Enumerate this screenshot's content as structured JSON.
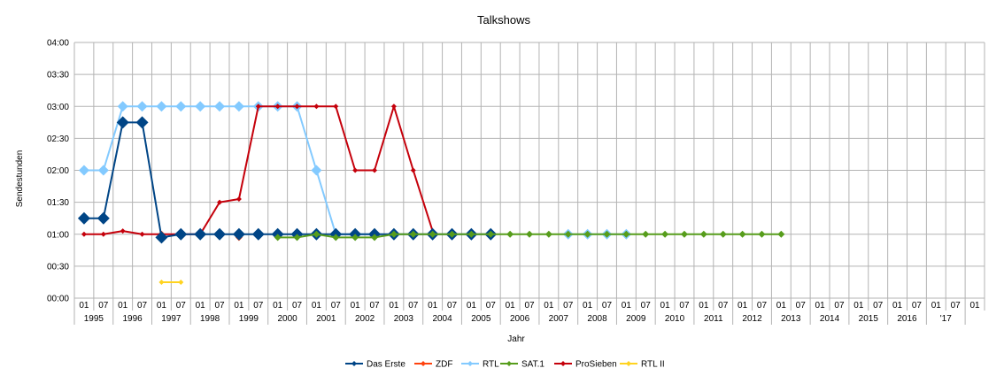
{
  "chart_data": {
    "type": "line",
    "title": "Talkshows",
    "xlabel": "Jahr",
    "ylabel": "Sendestunden",
    "y_ticks": [
      "00:00",
      "00:30",
      "01:00",
      "01:30",
      "02:00",
      "02:30",
      "03:00",
      "03:30",
      "04:00"
    ],
    "ylim_hours": [
      0,
      4
    ],
    "grid": true,
    "legend_position": "bottom",
    "half_labels": [
      "01",
      "07",
      "01",
      "07",
      "01",
      "07",
      "01",
      "07",
      "01",
      "07",
      "01",
      "07",
      "01",
      "07",
      "01",
      "07",
      "01",
      "07",
      "01",
      "07",
      "01",
      "07",
      "01",
      "07",
      "01",
      "07",
      "01",
      "07",
      "01",
      "07",
      "01",
      "07",
      "01",
      "07",
      "01",
      "07",
      "01",
      "07",
      "01",
      "07",
      "01",
      "07",
      "01",
      "07",
      "01",
      "07",
      "01"
    ],
    "years": [
      "1995",
      "1996",
      "1997",
      "1998",
      "1999",
      "2000",
      "2001",
      "2002",
      "2003",
      "2004",
      "2005",
      "2006",
      "2007",
      "2008",
      "2009",
      "2010",
      "2011",
      "2012",
      "2013",
      "2014",
      "2015",
      "2016",
      "'17"
    ],
    "series": [
      {
        "name": "Das Erste",
        "color": "#004586",
        "values": [
          1.25,
          1.25,
          2.75,
          2.75,
          0.95,
          1.0,
          1.0,
          1.0,
          1.0,
          1.0,
          1.0,
          1.0,
          1.0,
          1.0,
          1.0,
          1.0,
          1.0,
          1.0,
          1.0,
          1.0,
          1.0,
          1.0,
          null,
          null,
          null,
          null,
          null,
          null,
          null,
          null,
          null,
          null,
          null,
          null,
          null,
          null,
          null,
          null,
          null,
          null,
          null,
          null,
          null,
          null,
          null,
          null,
          null
        ]
      },
      {
        "name": "ZDF",
        "color": "#ff420e",
        "values": [
          null,
          null,
          null,
          null,
          1.0,
          null,
          null,
          null,
          0.95,
          null,
          null,
          null,
          null,
          null,
          null,
          null,
          null,
          null,
          null,
          null,
          null,
          null,
          null,
          null,
          null,
          null,
          null,
          null,
          null,
          null,
          null,
          null,
          null,
          null,
          null,
          null,
          null,
          null,
          null,
          null,
          null,
          null,
          null,
          null,
          null,
          null,
          null
        ]
      },
      {
        "name": "RTL",
        "color": "#83caff",
        "values": [
          2.0,
          2.0,
          3.0,
          3.0,
          3.0,
          3.0,
          3.0,
          3.0,
          3.0,
          3.0,
          3.0,
          3.0,
          2.0,
          1.0,
          1.0,
          1.0,
          null,
          null,
          null,
          null,
          null,
          null,
          null,
          null,
          null,
          1.0,
          1.0,
          1.0,
          1.0,
          null,
          null,
          null,
          null,
          null,
          null,
          null,
          null,
          null,
          null,
          null,
          null,
          null,
          null,
          null,
          null,
          null,
          null
        ]
      },
      {
        "name": "SAT.1",
        "color": "#579d1c",
        "values": [
          null,
          null,
          null,
          null,
          null,
          null,
          null,
          null,
          null,
          null,
          0.95,
          0.95,
          1.0,
          0.95,
          0.95,
          0.95,
          1.0,
          1.0,
          1.0,
          1.0,
          1.0,
          1.0,
          1.0,
          1.0,
          1.0,
          1.0,
          1.0,
          1.0,
          1.0,
          1.0,
          1.0,
          1.0,
          1.0,
          1.0,
          1.0,
          1.0,
          1.0,
          null,
          null,
          null,
          null,
          null,
          null,
          null,
          null,
          null,
          null
        ]
      },
      {
        "name": "ProSieben",
        "color": "#c5000b",
        "values": [
          1.0,
          1.0,
          1.05,
          1.0,
          1.0,
          1.0,
          1.0,
          1.5,
          1.55,
          3.0,
          3.0,
          3.0,
          3.0,
          3.0,
          2.0,
          2.0,
          3.0,
          2.0,
          1.05,
          null,
          null,
          null,
          null,
          null,
          null,
          null,
          null,
          null,
          null,
          null,
          null,
          null,
          null,
          null,
          null,
          null,
          null,
          null,
          null,
          null,
          null,
          null,
          null,
          null,
          null,
          null,
          null
        ]
      },
      {
        "name": "RTL II",
        "color": "#ffd320",
        "values": [
          null,
          null,
          null,
          null,
          0.25,
          0.25,
          null,
          null,
          null,
          null,
          null,
          null,
          null,
          null,
          null,
          null,
          null,
          null,
          null,
          null,
          null,
          null,
          null,
          null,
          null,
          null,
          null,
          null,
          null,
          null,
          null,
          null,
          null,
          null,
          null,
          null,
          null,
          null,
          null,
          null,
          null,
          null,
          null,
          null,
          null,
          null,
          null
        ]
      }
    ]
  }
}
